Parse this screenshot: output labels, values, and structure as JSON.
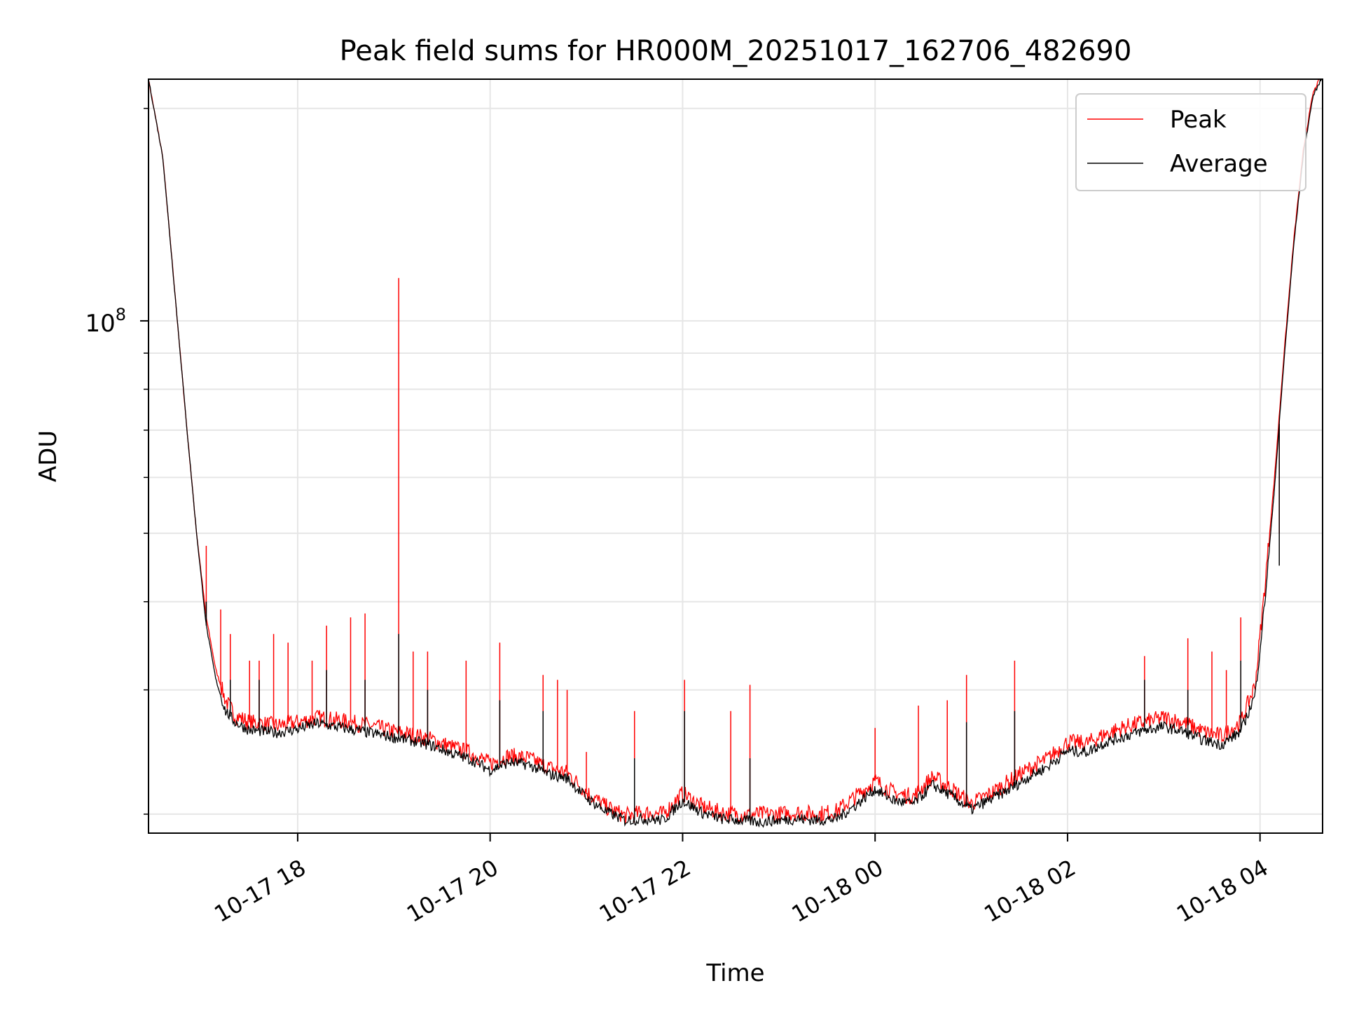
{
  "chart_data": {
    "type": "line",
    "title": "Peak field sums for HR000M_20251017_162706_482690",
    "xlabel": "Time",
    "ylabel": "ADU",
    "yscale": "log",
    "ylim": [
      18800000,
      220000000
    ],
    "xlim_hours": [
      16.45,
      28.65
    ],
    "grid": true,
    "legend_position": "top-right",
    "x_ticks": [
      {
        "hour": 18,
        "label": "10-17 18"
      },
      {
        "hour": 20,
        "label": "10-17 20"
      },
      {
        "hour": 22,
        "label": "10-17 22"
      },
      {
        "hour": 24,
        "label": "10-18 00"
      },
      {
        "hour": 26,
        "label": "10-18 02"
      },
      {
        "hour": 28,
        "label": "10-18 04"
      }
    ],
    "y_major_tick": {
      "value": 100000000,
      "base": "10",
      "exp": "8"
    },
    "y_minor_ticks": [
      20000000,
      30000000,
      40000000,
      50000000,
      60000000,
      70000000,
      80000000,
      90000000,
      200000000
    ],
    "series": [
      {
        "name": "Peak",
        "color": "#ff0000",
        "x": [
          16.45,
          16.6,
          16.75,
          16.85,
          16.95,
          17.05,
          17.15,
          17.25,
          17.35,
          17.5,
          17.8,
          18.0,
          18.2,
          18.4,
          18.6,
          18.8,
          19.0,
          19.2,
          19.4,
          19.6,
          19.8,
          20.0,
          20.2,
          20.4,
          20.6,
          20.8,
          21.0,
          21.2,
          21.4,
          21.6,
          21.8,
          22.0,
          22.2,
          22.4,
          22.6,
          22.8,
          23.0,
          23.2,
          23.4,
          23.6,
          23.8,
          24.0,
          24.2,
          24.4,
          24.6,
          24.8,
          25.0,
          25.2,
          25.4,
          25.6,
          25.8,
          26.0,
          26.2,
          26.4,
          26.6,
          26.8,
          27.0,
          27.2,
          27.4,
          27.6,
          27.8,
          27.95,
          28.05,
          28.15,
          28.25,
          28.35,
          28.45,
          28.55,
          28.65
        ],
        "y": [
          220000000,
          170000000,
          100000000,
          70000000,
          50000000,
          38000000,
          32000000,
          29000000,
          27600000,
          27000000,
          26700000,
          27000000,
          27400000,
          27200000,
          26900000,
          26600000,
          26200000,
          25900000,
          25500000,
          24900000,
          24400000,
          23600000,
          24200000,
          24000000,
          23300000,
          22900000,
          21500000,
          20500000,
          19900000,
          20100000,
          20000000,
          21400000,
          20500000,
          20100000,
          20000000,
          20000000,
          20000000,
          20100000,
          20000000,
          20200000,
          21200000,
          22300000,
          21400000,
          21200000,
          22600000,
          21700000,
          20700000,
          21400000,
          22300000,
          23200000,
          24000000,
          25300000,
          25200000,
          26000000,
          26600000,
          27000000,
          27400000,
          27000000,
          26200000,
          25800000,
          27000000,
          30500000,
          42000000,
          60000000,
          90000000,
          130000000,
          175000000,
          210000000,
          225000000
        ],
        "spikes": [
          {
            "x": 17.05,
            "y": 48000000
          },
          {
            "x": 17.2,
            "y": 39000000
          },
          {
            "x": 17.3,
            "y": 36000000
          },
          {
            "x": 17.5,
            "y": 33000000
          },
          {
            "x": 17.6,
            "y": 33000000
          },
          {
            "x": 17.75,
            "y": 36000000
          },
          {
            "x": 17.9,
            "y": 35000000
          },
          {
            "x": 18.15,
            "y": 33000000
          },
          {
            "x": 18.3,
            "y": 37000000
          },
          {
            "x": 18.55,
            "y": 38000000
          },
          {
            "x": 18.7,
            "y": 38500000
          },
          {
            "x": 19.05,
            "y": 115000000
          },
          {
            "x": 19.2,
            "y": 34000000
          },
          {
            "x": 19.35,
            "y": 34000000
          },
          {
            "x": 19.75,
            "y": 33000000
          },
          {
            "x": 20.1,
            "y": 35000000
          },
          {
            "x": 20.55,
            "y": 31500000
          },
          {
            "x": 20.7,
            "y": 31000000
          },
          {
            "x": 20.8,
            "y": 30000000
          },
          {
            "x": 21.0,
            "y": 24500000
          },
          {
            "x": 21.5,
            "y": 28000000
          },
          {
            "x": 22.02,
            "y": 31000000
          },
          {
            "x": 22.5,
            "y": 28000000
          },
          {
            "x": 22.7,
            "y": 30500000
          },
          {
            "x": 24.0,
            "y": 26500000
          },
          {
            "x": 24.45,
            "y": 28500000
          },
          {
            "x": 24.75,
            "y": 29000000
          },
          {
            "x": 24.95,
            "y": 31500000
          },
          {
            "x": 25.45,
            "y": 33000000
          },
          {
            "x": 26.8,
            "y": 33500000
          },
          {
            "x": 27.25,
            "y": 35500000
          },
          {
            "x": 27.5,
            "y": 34000000
          },
          {
            "x": 27.65,
            "y": 32000000
          },
          {
            "x": 27.8,
            "y": 38000000
          },
          {
            "x": 28.2,
            "y": 50000000
          }
        ]
      },
      {
        "name": "Average",
        "color": "#000000",
        "x": [
          16.45,
          16.6,
          16.75,
          16.85,
          16.95,
          17.05,
          17.15,
          17.25,
          17.35,
          17.5,
          17.8,
          18.0,
          18.2,
          18.4,
          18.6,
          18.8,
          19.0,
          19.2,
          19.4,
          19.6,
          19.8,
          20.0,
          20.2,
          20.4,
          20.6,
          20.8,
          21.0,
          21.2,
          21.4,
          21.6,
          21.8,
          22.0,
          22.2,
          22.4,
          22.6,
          22.8,
          23.0,
          23.2,
          23.4,
          23.6,
          23.8,
          24.0,
          24.2,
          24.4,
          24.6,
          24.8,
          25.0,
          25.2,
          25.4,
          25.6,
          25.8,
          26.0,
          26.2,
          26.4,
          26.6,
          26.8,
          27.0,
          27.2,
          27.4,
          27.6,
          27.8,
          27.95,
          28.05,
          28.15,
          28.25,
          28.35,
          28.45,
          28.55,
          28.65
        ],
        "y": [
          220000000,
          170000000,
          100000000,
          70000000,
          50000000,
          37000000,
          31000000,
          28000000,
          27000000,
          26300000,
          26100000,
          26400000,
          26900000,
          26600000,
          26300000,
          26000000,
          25700000,
          25400000,
          25000000,
          24400000,
          23900000,
          23100000,
          23700000,
          23500000,
          22800000,
          22500000,
          21100000,
          20200000,
          19600000,
          19700000,
          19600000,
          20900000,
          20100000,
          19700000,
          19600000,
          19500000,
          19600000,
          19700000,
          19600000,
          19700000,
          20600000,
          21700000,
          20900000,
          20700000,
          22000000,
          21200000,
          20300000,
          21000000,
          21700000,
          22600000,
          23400000,
          24600000,
          24500000,
          25300000,
          25800000,
          26300000,
          26600000,
          26200000,
          25500000,
          25100000,
          26200000,
          29500000,
          40000000,
          58000000,
          88000000,
          128000000,
          172000000,
          208000000,
          222000000
        ],
        "spikes": [
          {
            "x": 17.05,
            "y": 40000000
          },
          {
            "x": 17.3,
            "y": 31000000
          },
          {
            "x": 17.6,
            "y": 31000000
          },
          {
            "x": 18.3,
            "y": 32000000
          },
          {
            "x": 18.7,
            "y": 31000000
          },
          {
            "x": 19.05,
            "y": 36000000
          },
          {
            "x": 19.35,
            "y": 30000000
          },
          {
            "x": 20.1,
            "y": 29000000
          },
          {
            "x": 20.55,
            "y": 28000000
          },
          {
            "x": 21.5,
            "y": 24000000
          },
          {
            "x": 22.02,
            "y": 28000000
          },
          {
            "x": 22.7,
            "y": 24000000
          },
          {
            "x": 24.95,
            "y": 27000000
          },
          {
            "x": 25.45,
            "y": 28000000
          },
          {
            "x": 26.8,
            "y": 31000000
          },
          {
            "x": 27.25,
            "y": 30000000
          },
          {
            "x": 27.8,
            "y": 33000000
          },
          {
            "x": 28.2,
            "y": 45000000
          }
        ]
      }
    ]
  }
}
